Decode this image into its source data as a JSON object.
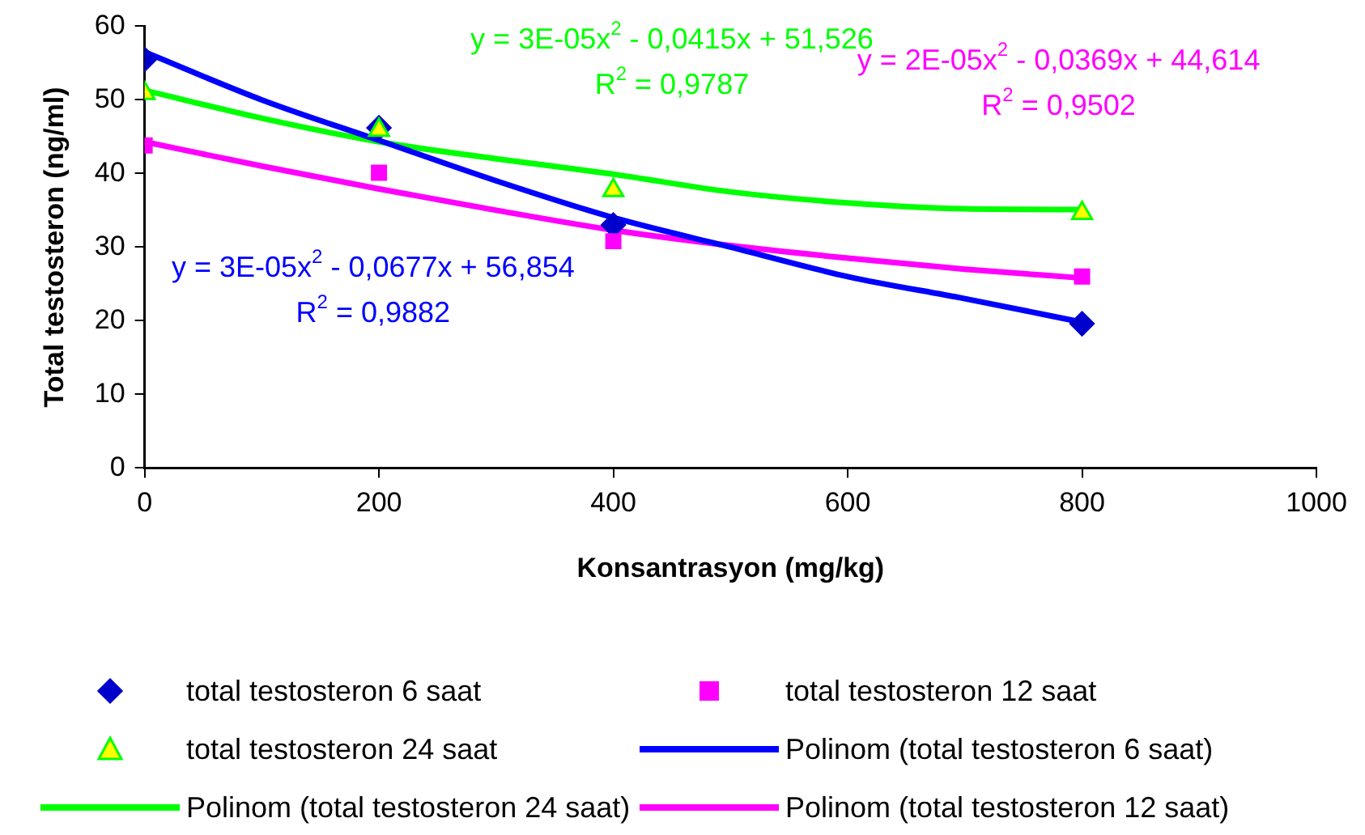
{
  "chart_data": {
    "type": "scatter",
    "xlabel": "Konsantrasyon (mg/kg)",
    "ylabel": "Total testosteron (ng/ml)",
    "xlim": [
      0,
      1000
    ],
    "xticks": [
      0,
      200,
      400,
      600,
      800,
      1000
    ],
    "ylim": [
      0,
      60
    ],
    "yticks": [
      0,
      10,
      20,
      30,
      40,
      50,
      60
    ],
    "grid": false,
    "legend": "bottom",
    "series": [
      {
        "name": "total testosteron 6 saat",
        "marker": "diamond",
        "color": "#0000cc",
        "x": [
          0,
          200,
          400,
          800
        ],
        "values": [
          55.5,
          46.2,
          33,
          19.6
        ]
      },
      {
        "name": "total testosteron 12 saat",
        "marker": "square",
        "color": "#ff00ff",
        "x": [
          0,
          200,
          400,
          800
        ],
        "values": [
          43.8,
          40.1,
          30.8,
          26
        ]
      },
      {
        "name": "total testosteron 24 saat",
        "marker": "triangle",
        "color": "#ffff00",
        "x": [
          0,
          200,
          400,
          800
        ],
        "values": [
          50.9,
          45.9,
          37.7,
          34.6
        ]
      },
      {
        "name": "Polinom (total testosteron 6 saat)",
        "type": "line",
        "marker": "none",
        "color": "#0000ff",
        "x": [
          0,
          100,
          200,
          300,
          400,
          500,
          600,
          700,
          800
        ],
        "values": [
          56.5,
          50,
          44.5,
          39,
          34,
          30,
          26,
          23,
          19.8
        ]
      },
      {
        "name": "Polinom (total testosteron 24 saat)",
        "type": "line",
        "marker": "none",
        "color": "#00ff00",
        "x": [
          0,
          100,
          200,
          300,
          400,
          500,
          600,
          700,
          800
        ],
        "values": [
          51.3,
          47.5,
          44.3,
          42,
          39.9,
          37.5,
          36,
          35.2,
          35.1
        ]
      },
      {
        "name": "Polinom (total testosteron 12 saat)",
        "type": "line",
        "marker": "none",
        "color": "#ff00ff",
        "x": [
          0,
          100,
          200,
          300,
          400,
          500,
          600,
          700,
          800
        ],
        "values": [
          44.3,
          41,
          37.9,
          35,
          32.3,
          30.2,
          28.5,
          27,
          25.8
        ]
      }
    ],
    "annotations": [
      "y = 3E-05x$^{2}$ - 0,0415x + 51,526",
      "R$^{2}$ = 0,9787",
      "y = 2E-05x$^{2}$ - 0,0369x + 44,614",
      "R$^{2}$ = 0,9502",
      "y = 3E-05x$^{2}$ - 0,0677x + 56,854",
      "R$^{2}$ = 0,9882"
    ]
  }
}
